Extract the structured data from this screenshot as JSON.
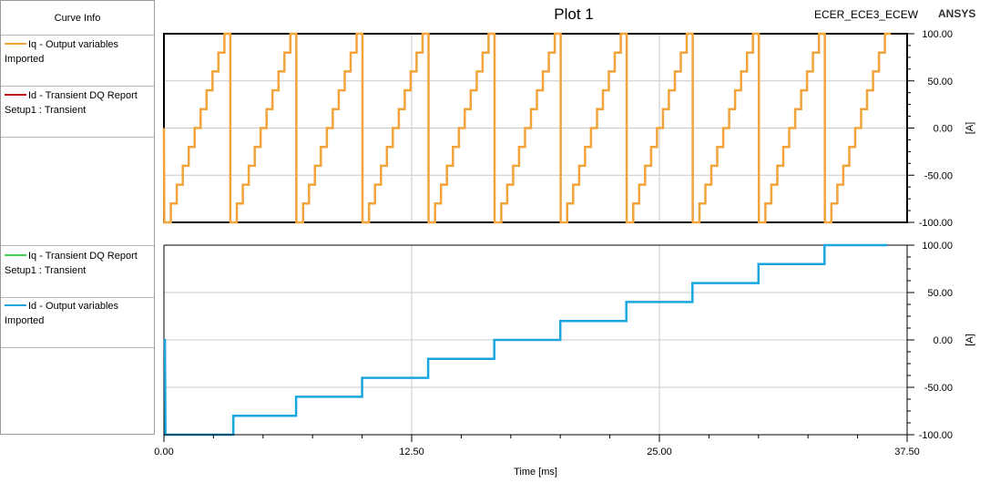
{
  "header": {
    "title": "Plot 1",
    "design_name": "ECER_ECE3_ECEW",
    "vendor": "ANSYS"
  },
  "legend": {
    "header": "Curve Info",
    "entries": [
      {
        "name": "Iq - Output variables",
        "sub": "Imported",
        "color": "#f2a33a"
      },
      {
        "name": "Id - Transient DQ Report",
        "sub": "Setup1 : Transient",
        "color": "#c0141c"
      },
      {
        "name": "Iq - Transient DQ Report",
        "sub": "Setup1 : Transient",
        "color": "#3fd14a"
      },
      {
        "name": "Id - Output variables",
        "sub": "Imported",
        "color": "#1aa6e0"
      }
    ]
  },
  "colors": {
    "iq_output": "#f2a33a",
    "id_output": "#1aa6e0",
    "grid": "#c8c8c8"
  },
  "chart_data": [
    {
      "type": "line",
      "panel": "top",
      "xlabel": "Time [ms]",
      "ylabel": "[A]",
      "xlim": [
        0,
        37.5
      ],
      "ylim": [
        -100,
        100
      ],
      "xticks": [
        "0.00",
        "12.50",
        "25.00",
        "37.50"
      ],
      "yticks": [
        "100.00",
        "50.00",
        "0.00",
        "-50.00",
        "-100.00"
      ],
      "grid": true,
      "series": [
        {
          "name": "Iq - Output variables",
          "color": "#f2a33a",
          "sawtooth": {
            "first_step_start": 0.0,
            "cycle_starts": [
              0.0,
              3.33,
              6.67,
              10.0,
              13.33,
              16.67,
              20.0,
              23.33,
              26.67,
              30.0,
              33.33
            ],
            "levels": [
              -100,
              -80,
              -60,
              -40,
              -20,
              0,
              20,
              40,
              60,
              80,
              100
            ],
            "drop_to": -100
          }
        }
      ]
    },
    {
      "type": "line",
      "panel": "bottom",
      "xlabel": "Time [ms]",
      "ylabel": "[A]",
      "xlim": [
        0,
        37.5
      ],
      "ylim": [
        -100,
        100
      ],
      "xticks": [
        "0.00",
        "12.50",
        "25.00",
        "37.50"
      ],
      "yticks": [
        "100.00",
        "50.00",
        "0.00",
        "-50.00",
        "-100.00"
      ],
      "grid": true,
      "series": [
        {
          "name": "Id - Output variables",
          "color": "#1aa6e0",
          "x": [
            0.0,
            0.05,
            0.08,
            3.5,
            3.5,
            6.67,
            6.67,
            10.0,
            10.0,
            13.33,
            13.33,
            16.67,
            16.67,
            20.0,
            20.0,
            23.33,
            23.33,
            26.67,
            26.67,
            30.0,
            30.0,
            33.33,
            33.33,
            36.5
          ],
          "y": [
            0,
            0,
            -100,
            -100,
            -80,
            -80,
            -60,
            -60,
            -40,
            -40,
            -20,
            -20,
            0,
            0,
            20,
            20,
            40,
            40,
            60,
            60,
            80,
            80,
            100,
            100
          ]
        }
      ]
    }
  ]
}
